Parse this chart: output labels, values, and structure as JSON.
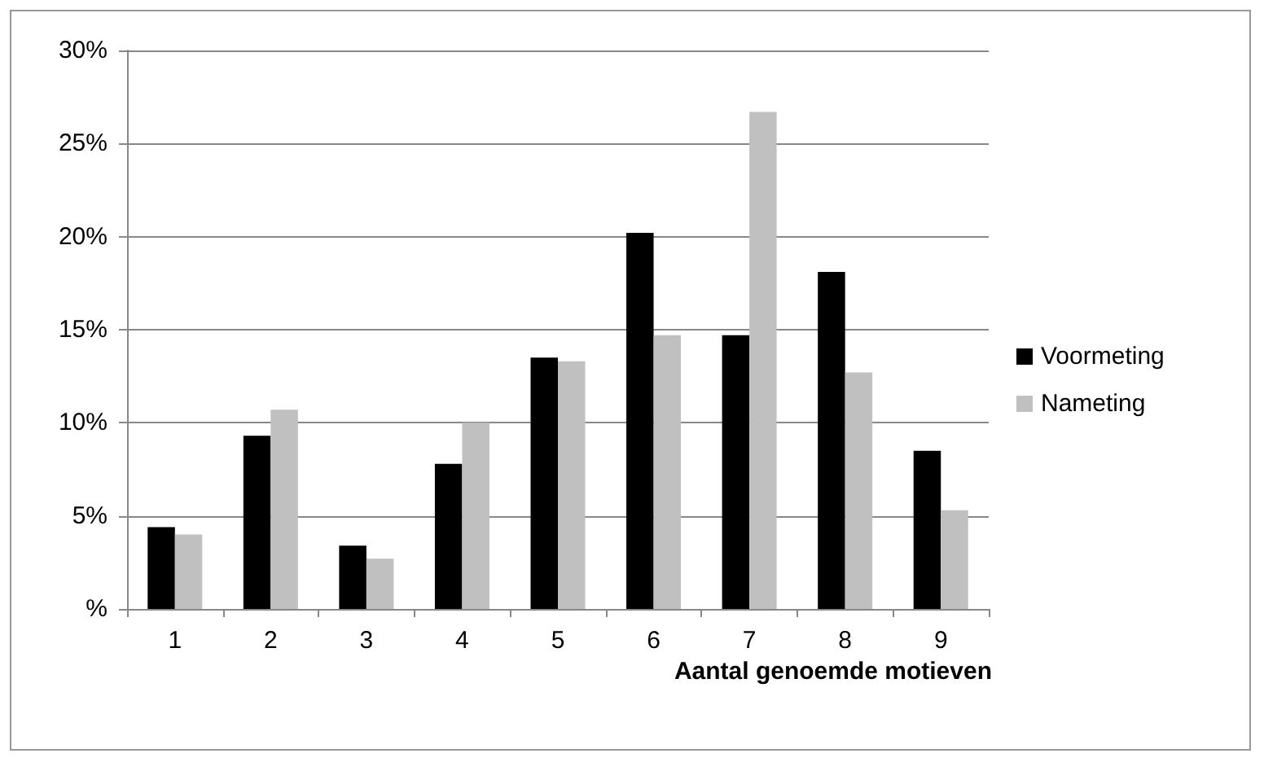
{
  "chart_data": {
    "type": "bar",
    "xlabel": "Aantal genoemde motieven",
    "categories": [
      "1",
      "2",
      "3",
      "4",
      "5",
      "6",
      "7",
      "8",
      "9"
    ],
    "series": [
      {
        "name": "Voormeting",
        "color": "#000000",
        "values": [
          4.4,
          9.3,
          3.4,
          7.8,
          13.5,
          20.2,
          14.7,
          18.1,
          8.5
        ]
      },
      {
        "name": "Nameting",
        "color": "#c0c0c0",
        "values": [
          4.0,
          10.7,
          2.7,
          10.0,
          13.3,
          14.7,
          26.7,
          12.7,
          5.3
        ]
      }
    ],
    "ylim": [
      0,
      30
    ],
    "yticks": [
      {
        "value": 0,
        "label": "%"
      },
      {
        "value": 5,
        "label": "5%"
      },
      {
        "value": 10,
        "label": "10%"
      },
      {
        "value": 15,
        "label": "15%"
      },
      {
        "value": 20,
        "label": "20%"
      },
      {
        "value": 25,
        "label": "25%"
      },
      {
        "value": 30,
        "label": "30%"
      }
    ],
    "grid": "y",
    "legend": "right"
  }
}
